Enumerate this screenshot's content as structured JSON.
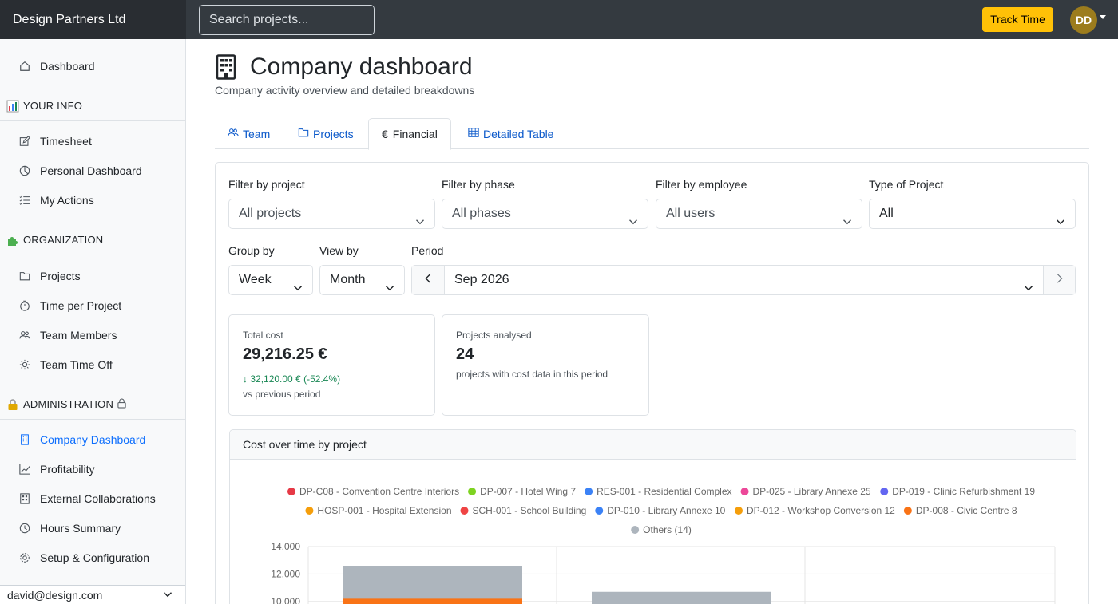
{
  "app": {
    "brand": "Design Partners Ltd",
    "search_placeholder": "Search projects...",
    "track_time": "Track Time",
    "avatar_initials": "DD"
  },
  "sidebar": {
    "dashboard": "Dashboard",
    "section_your_info": "YOUR INFO",
    "timesheet": "Timesheet",
    "personal_dashboard": "Personal Dashboard",
    "my_actions": "My Actions",
    "section_organization": "ORGANIZATION",
    "projects": "Projects",
    "time_per_project": "Time per Project",
    "team_members": "Team Members",
    "team_time_off": "Team Time Off",
    "section_administration": "ADMINISTRATION",
    "company_dashboard": "Company Dashboard",
    "profitability": "Profitability",
    "external_collaborations": "External Collaborations",
    "hours_summary": "Hours Summary",
    "setup": "Setup & Configuration",
    "user_email": "david@design.com"
  },
  "page": {
    "title": "Company dashboard",
    "subtitle": "Company activity overview and detailed breakdowns"
  },
  "tabs": {
    "team": "Team",
    "projects": "Projects",
    "financial": "Financial",
    "detailed": "Detailed Table",
    "financial_icon": "€"
  },
  "filters": {
    "project_label": "Filter by project",
    "project_value": "All projects",
    "phase_label": "Filter by phase",
    "phase_value": "All phases",
    "employee_label": "Filter by employee",
    "employee_value": "All users",
    "type_label": "Type of Project",
    "type_value": "All",
    "group_label": "Group by",
    "group_value": "Week",
    "view_label": "View by",
    "view_value": "Month",
    "period_label": "Period",
    "period_value": "Sep 2026"
  },
  "kpis": {
    "total_cost_label": "Total cost",
    "total_cost_value": "29,216.25 €",
    "total_cost_delta": "32,120.00 € (-52.4%)",
    "total_cost_sub": "vs previous period",
    "projects_label": "Projects analysed",
    "projects_value": "24",
    "projects_sub": "projects with cost data in this period"
  },
  "chart_title": "Cost over time by project",
  "chart_data": {
    "type": "bar",
    "stacked": true,
    "legend": [
      {
        "name": "DP-C08 - Convention Centre Interiors",
        "color": "#e63946"
      },
      {
        "name": "DP-007 - Hotel Wing 7",
        "color": "#7ed321"
      },
      {
        "name": "RES-001 - Residential Complex",
        "color": "#3b82f6"
      },
      {
        "name": "DP-025 - Library Annexe 25",
        "color": "#ec4899"
      },
      {
        "name": "DP-019 - Clinic Refurbishment 19",
        "color": "#6366f1"
      },
      {
        "name": "HOSP-001 - Hospital Extension",
        "color": "#f59e0b"
      },
      {
        "name": "SCH-001 - School Building",
        "color": "#ef4444"
      },
      {
        "name": "DP-010 - Library Annexe 10",
        "color": "#3b82f6"
      },
      {
        "name": "DP-012 - Workshop Conversion 12",
        "color": "#f59e0b"
      },
      {
        "name": "DP-008 - Civic Centre 8",
        "color": "#f97316"
      },
      {
        "name": "Others (14)",
        "color": "#adb5bd"
      }
    ],
    "y_ticks": [
      "14,000",
      "12,000",
      "10,000"
    ],
    "ylim_visible": [
      10000,
      14000
    ],
    "bars": [
      {
        "total": 12600,
        "top_series": "Others (14)",
        "next_series": "DP-008 - Civic Centre 8",
        "next_top": 10200
      },
      {
        "total": 10700,
        "top_series": "Others (14)"
      }
    ]
  }
}
